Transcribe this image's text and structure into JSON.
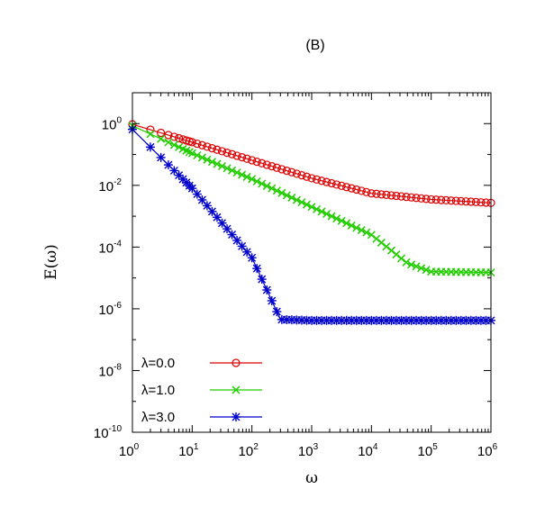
{
  "chart_data": {
    "type": "line",
    "title": "(B)",
    "xlabel": "ω",
    "ylabel": "E(ω)",
    "xscale": "log",
    "yscale": "log",
    "xlim": [
      1,
      1000000
    ],
    "ylim": [
      1e-10,
      10
    ],
    "x_ticks": [
      {
        "base": "10",
        "exp": "0",
        "value": 1
      },
      {
        "base": "10",
        "exp": "1",
        "value": 10
      },
      {
        "base": "10",
        "exp": "2",
        "value": 100
      },
      {
        "base": "10",
        "exp": "3",
        "value": 1000
      },
      {
        "base": "10",
        "exp": "4",
        "value": 10000
      },
      {
        "base": "10",
        "exp": "5",
        "value": 100000
      },
      {
        "base": "10",
        "exp": "6",
        "value": 1000000
      }
    ],
    "y_ticks": [
      {
        "base": "10",
        "exp": "0",
        "value": 1
      },
      {
        "base": "10",
        "exp": "-2",
        "value": 0.01
      },
      {
        "base": "10",
        "exp": "-4",
        "value": 0.0001
      },
      {
        "base": "10",
        "exp": "-6",
        "value": 1e-06
      },
      {
        "base": "10",
        "exp": "-8",
        "value": 1e-08
      },
      {
        "base": "10",
        "exp": "-10",
        "value": 1e-10
      }
    ],
    "grid": false,
    "legend_position": "bottom-left",
    "series": [
      {
        "name": "λ=0.0",
        "color": "#dd0000",
        "marker": "circle",
        "points": [
          [
            1,
            0.95
          ],
          [
            10,
            0.25
          ],
          [
            100,
            0.065
          ],
          [
            1000,
            0.017
          ],
          [
            10000,
            0.0055
          ],
          [
            100000,
            0.0035
          ],
          [
            1000000,
            0.0027
          ]
        ]
      },
      {
        "name": "λ=1.0",
        "color": "#22cc00",
        "marker": "cross",
        "points": [
          [
            1,
            0.85
          ],
          [
            10,
            0.11
          ],
          [
            100,
            0.016
          ],
          [
            1000,
            0.002
          ],
          [
            10000,
            0.00025
          ],
          [
            40000,
            3e-05
          ],
          [
            100000,
            1.6e-05
          ],
          [
            1000000,
            1.5e-05
          ]
        ]
      },
      {
        "name": "λ=3.0",
        "color": "#0000cc",
        "marker": "star",
        "points": [
          [
            1,
            0.65
          ],
          [
            10,
            0.008
          ],
          [
            100,
            4.5e-05
          ],
          [
            200,
            2.5e-06
          ],
          [
            300,
            4.5e-07
          ],
          [
            1000,
            4.2e-07
          ],
          [
            1000000,
            4.2e-07
          ]
        ]
      }
    ]
  }
}
